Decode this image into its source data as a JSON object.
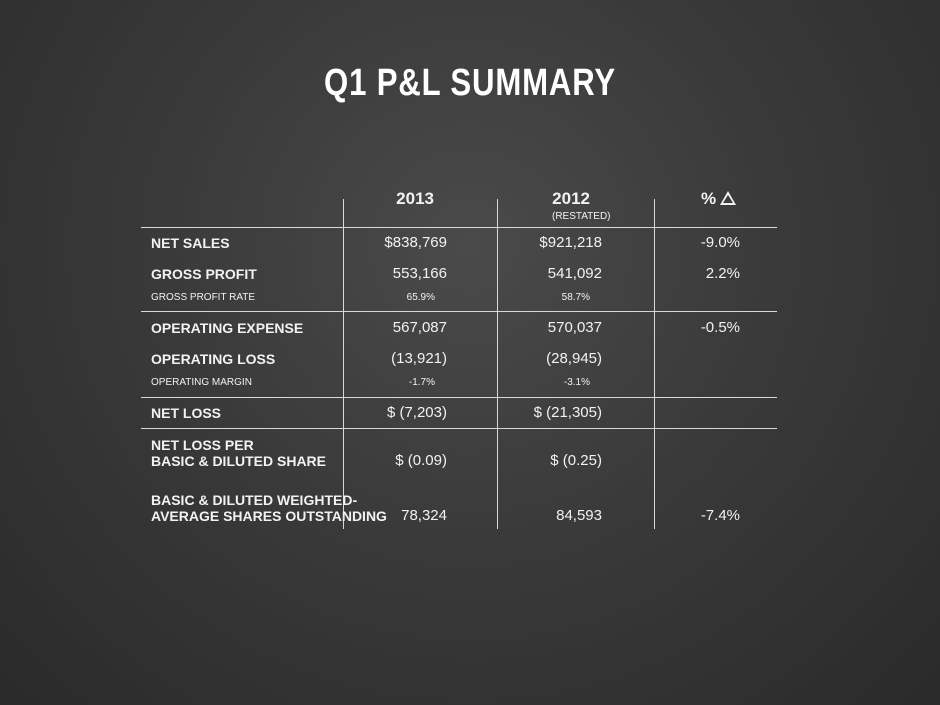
{
  "title": "Q1 P&L SUMMARY",
  "columns": {
    "col1": "2013",
    "col2": "2012",
    "col2_sub": "(RESTATED)",
    "col3": "%"
  },
  "rows": {
    "net_sales": {
      "label": "NET SALES",
      "v2013": "$838,769",
      "v2012": "$921,218",
      "pct": "-9.0%"
    },
    "gross_profit": {
      "label": "GROSS PROFIT",
      "v2013": "553,166",
      "v2012": "541,092",
      "pct": "2.2%"
    },
    "gross_profit_rate": {
      "label": "GROSS PROFIT RATE",
      "v2013": "65.9%",
      "v2012": "58.7%"
    },
    "operating_expense": {
      "label": "OPERATING EXPENSE",
      "v2013": "567,087",
      "v2012": "570,037",
      "pct": "-0.5%"
    },
    "operating_loss": {
      "label": "OPERATING LOSS",
      "v2013": "(13,921)",
      "v2012": "(28,945)"
    },
    "operating_margin": {
      "label": "OPERATING MARGIN",
      "v2013": "-1.7%",
      "v2012": "-3.1%"
    },
    "net_loss": {
      "label": "NET LOSS",
      "v2013": "$ (7,203)",
      "v2012": "$ (21,305)"
    },
    "net_loss_per_share": {
      "label_line1": "NET LOSS PER",
      "label_line2": "BASIC & DILUTED SHARE",
      "v2013": "$ (0.09)",
      "v2012": "$ (0.25)"
    },
    "weighted_shares": {
      "label_line1": "BASIC & DILUTED WEIGHTED-",
      "label_line2": "AVERAGE SHARES OUTSTANDING",
      "v2013": "78,324",
      "v2012": "84,593",
      "pct": "-7.4%"
    }
  },
  "icons": {
    "delta": "triangle-delta-icon"
  }
}
